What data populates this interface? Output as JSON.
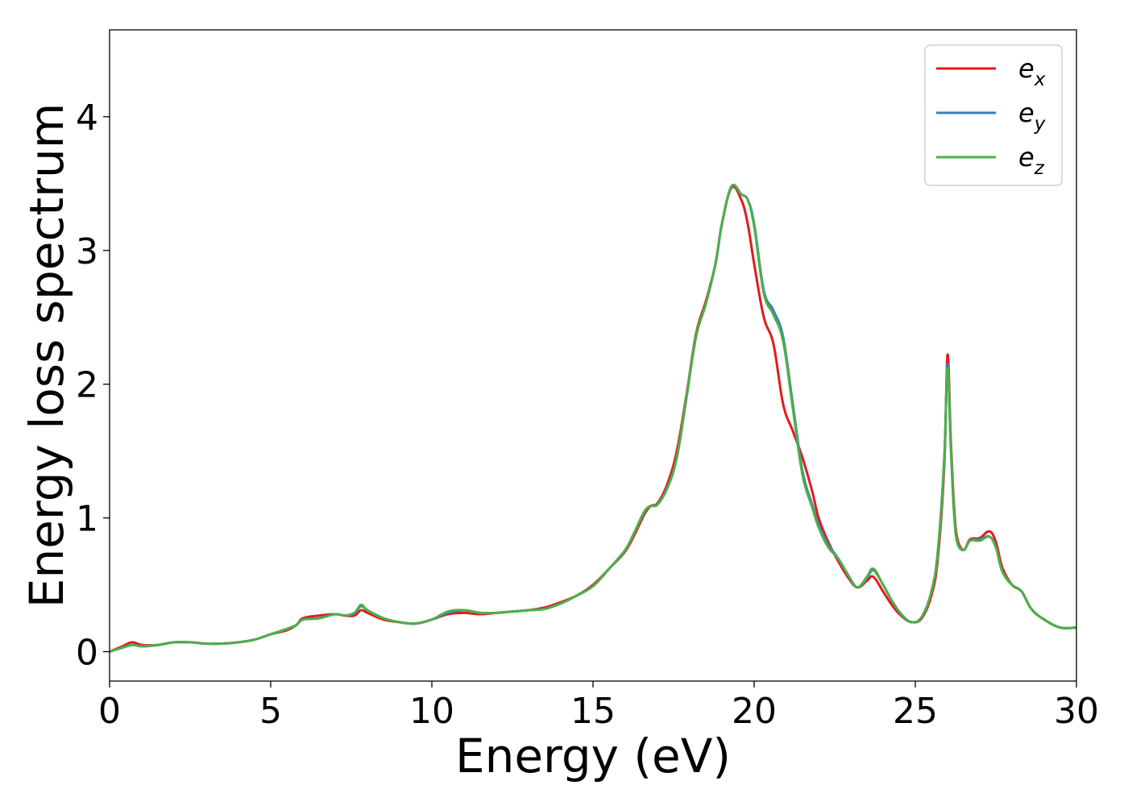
{
  "chart_data": {
    "type": "line",
    "title": "",
    "xlabel": "Energy (eV)",
    "ylabel": "Energy loss spectrum",
    "xlim": [
      0,
      30
    ],
    "ylim": [
      -0.22,
      4.65
    ],
    "xticks": [
      0,
      5,
      10,
      15,
      20,
      25,
      30
    ],
    "xtick_labels": [
      "0",
      "5",
      "10",
      "15",
      "20",
      "25",
      "30"
    ],
    "yticks": [
      0,
      1,
      2,
      3,
      4
    ],
    "ytick_labels": [
      "0",
      "1",
      "2",
      "3",
      "4"
    ],
    "grid": false,
    "legend_position": "top-right",
    "series": [
      {
        "name": "e",
        "subscript": "x",
        "color": "#e41a1c",
        "x": [
          0,
          0.4,
          0.7,
          1.0,
          1.5,
          2.0,
          2.5,
          3.0,
          3.5,
          4.0,
          4.5,
          5.0,
          5.5,
          5.8,
          6.0,
          6.5,
          7.0,
          7.3,
          7.6,
          7.8,
          8.0,
          8.5,
          9.0,
          9.5,
          10.0,
          10.5,
          11.0,
          11.5,
          12.0,
          12.5,
          13.0,
          13.5,
          14.0,
          14.5,
          15.0,
          15.5,
          16.0,
          16.3,
          16.6,
          16.8,
          17.0,
          17.3,
          17.6,
          17.9,
          18.2,
          18.5,
          18.8,
          19.0,
          19.3,
          19.6,
          19.8,
          20.0,
          20.3,
          20.6,
          20.9,
          21.2,
          21.5,
          21.8,
          22.0,
          22.3,
          22.6,
          22.9,
          23.2,
          23.5,
          23.7,
          24.0,
          24.3,
          24.6,
          24.9,
          25.2,
          25.5,
          25.7,
          25.9,
          26.0,
          26.1,
          26.2,
          26.3,
          26.5,
          26.7,
          27.0,
          27.3,
          27.5,
          27.7,
          28.0,
          28.3,
          28.6,
          29.0,
          29.5,
          30.0
        ],
        "values": [
          0.0,
          0.04,
          0.07,
          0.05,
          0.05,
          0.07,
          0.07,
          0.06,
          0.06,
          0.07,
          0.09,
          0.13,
          0.16,
          0.2,
          0.25,
          0.27,
          0.28,
          0.27,
          0.27,
          0.31,
          0.29,
          0.24,
          0.22,
          0.21,
          0.24,
          0.28,
          0.29,
          0.28,
          0.29,
          0.3,
          0.31,
          0.33,
          0.37,
          0.42,
          0.5,
          0.62,
          0.75,
          0.88,
          1.03,
          1.09,
          1.11,
          1.25,
          1.5,
          1.92,
          2.38,
          2.62,
          2.9,
          3.2,
          3.47,
          3.38,
          3.2,
          2.9,
          2.5,
          2.3,
          1.85,
          1.65,
          1.45,
          1.2,
          1.0,
          0.82,
          0.68,
          0.56,
          0.48,
          0.53,
          0.56,
          0.45,
          0.34,
          0.26,
          0.22,
          0.25,
          0.42,
          0.7,
          1.4,
          2.22,
          1.6,
          1.1,
          0.85,
          0.76,
          0.84,
          0.85,
          0.9,
          0.82,
          0.63,
          0.5,
          0.45,
          0.32,
          0.24,
          0.18,
          0.18
        ]
      },
      {
        "name": "e",
        "subscript": "y",
        "color": "#377eb8",
        "x": [
          0,
          0.4,
          0.7,
          1.0,
          1.5,
          2.0,
          2.5,
          3.0,
          3.5,
          4.0,
          4.5,
          5.0,
          5.5,
          5.8,
          6.0,
          6.5,
          7.0,
          7.3,
          7.6,
          7.8,
          8.0,
          8.5,
          9.0,
          9.5,
          10.0,
          10.5,
          11.0,
          11.5,
          12.0,
          12.5,
          13.0,
          13.5,
          14.0,
          14.5,
          15.0,
          15.5,
          16.0,
          16.3,
          16.6,
          16.8,
          17.0,
          17.3,
          17.6,
          17.9,
          18.2,
          18.5,
          18.8,
          19.0,
          19.3,
          19.6,
          19.8,
          20.0,
          20.3,
          20.6,
          20.9,
          21.2,
          21.5,
          21.8,
          22.0,
          22.3,
          22.6,
          22.9,
          23.2,
          23.5,
          23.7,
          24.0,
          24.3,
          24.6,
          24.9,
          25.2,
          25.5,
          25.7,
          25.9,
          26.0,
          26.1,
          26.2,
          26.3,
          26.5,
          26.7,
          27.0,
          27.3,
          27.5,
          27.7,
          28.0,
          28.3,
          28.6,
          29.0,
          29.5,
          30.0
        ],
        "values": [
          0.0,
          0.03,
          0.05,
          0.04,
          0.05,
          0.07,
          0.07,
          0.06,
          0.06,
          0.07,
          0.09,
          0.13,
          0.17,
          0.2,
          0.24,
          0.25,
          0.28,
          0.27,
          0.29,
          0.34,
          0.31,
          0.25,
          0.22,
          0.21,
          0.24,
          0.29,
          0.31,
          0.29,
          0.29,
          0.3,
          0.31,
          0.32,
          0.36,
          0.42,
          0.49,
          0.62,
          0.76,
          0.9,
          1.05,
          1.09,
          1.1,
          1.22,
          1.45,
          1.9,
          2.36,
          2.6,
          2.9,
          3.2,
          3.48,
          3.42,
          3.38,
          3.2,
          2.7,
          2.55,
          2.35,
          1.85,
          1.35,
          1.1,
          0.95,
          0.8,
          0.7,
          0.58,
          0.48,
          0.55,
          0.61,
          0.5,
          0.37,
          0.27,
          0.22,
          0.26,
          0.45,
          0.75,
          1.45,
          2.15,
          1.55,
          1.05,
          0.82,
          0.76,
          0.83,
          0.84,
          0.86,
          0.78,
          0.6,
          0.5,
          0.45,
          0.32,
          0.24,
          0.18,
          0.18
        ]
      },
      {
        "name": "e",
        "subscript": "z",
        "color": "#4daf4a",
        "x": [
          0,
          0.4,
          0.7,
          1.0,
          1.5,
          2.0,
          2.5,
          3.0,
          3.5,
          4.0,
          4.5,
          5.0,
          5.5,
          5.8,
          6.0,
          6.5,
          7.0,
          7.3,
          7.6,
          7.8,
          8.0,
          8.5,
          9.0,
          9.5,
          10.0,
          10.5,
          11.0,
          11.5,
          12.0,
          12.5,
          13.0,
          13.5,
          14.0,
          14.5,
          15.0,
          15.5,
          16.0,
          16.3,
          16.6,
          16.8,
          17.0,
          17.3,
          17.6,
          17.9,
          18.2,
          18.5,
          18.8,
          19.0,
          19.3,
          19.6,
          19.8,
          20.0,
          20.3,
          20.6,
          20.9,
          21.2,
          21.5,
          21.8,
          22.0,
          22.3,
          22.6,
          22.9,
          23.2,
          23.5,
          23.7,
          24.0,
          24.3,
          24.6,
          24.9,
          25.2,
          25.5,
          25.7,
          25.9,
          26.0,
          26.1,
          26.2,
          26.3,
          26.5,
          26.7,
          27.0,
          27.3,
          27.5,
          27.7,
          28.0,
          28.3,
          28.6,
          29.0,
          29.5,
          30.0
        ],
        "values": [
          0.0,
          0.03,
          0.05,
          0.04,
          0.05,
          0.07,
          0.07,
          0.06,
          0.06,
          0.07,
          0.09,
          0.13,
          0.17,
          0.2,
          0.24,
          0.25,
          0.28,
          0.27,
          0.29,
          0.35,
          0.31,
          0.25,
          0.22,
          0.21,
          0.24,
          0.3,
          0.31,
          0.29,
          0.29,
          0.3,
          0.31,
          0.32,
          0.36,
          0.42,
          0.49,
          0.62,
          0.76,
          0.9,
          1.05,
          1.09,
          1.1,
          1.22,
          1.45,
          1.9,
          2.36,
          2.6,
          2.9,
          3.2,
          3.48,
          3.42,
          3.38,
          3.18,
          2.68,
          2.52,
          2.32,
          1.82,
          1.32,
          1.08,
          0.93,
          0.78,
          0.7,
          0.58,
          0.48,
          0.56,
          0.62,
          0.5,
          0.37,
          0.27,
          0.22,
          0.26,
          0.45,
          0.75,
          1.45,
          2.12,
          1.55,
          1.05,
          0.82,
          0.76,
          0.83,
          0.83,
          0.86,
          0.78,
          0.6,
          0.5,
          0.45,
          0.32,
          0.24,
          0.18,
          0.18
        ]
      }
    ]
  }
}
